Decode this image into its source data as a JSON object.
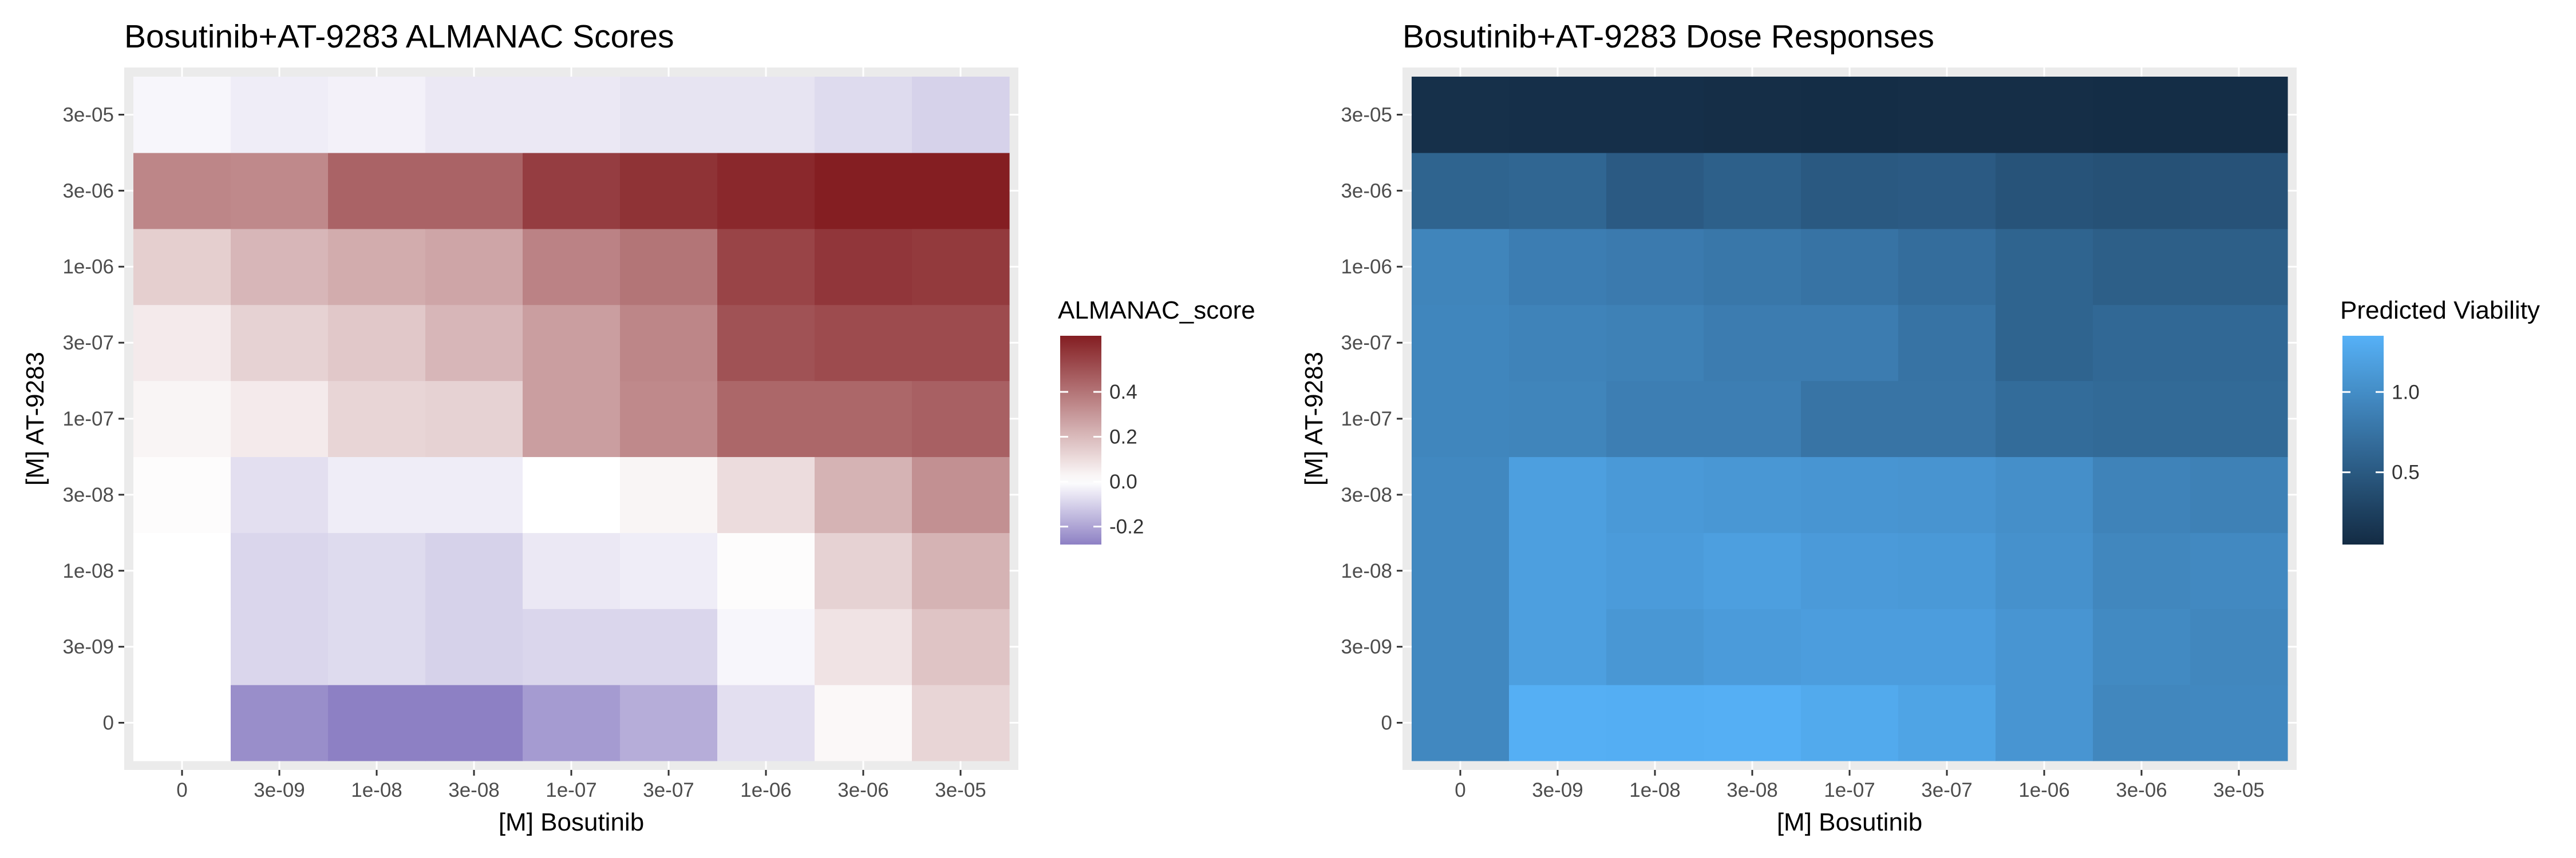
{
  "chart_data": [
    {
      "type": "heatmap",
      "title": "Bosutinib+AT-9283 ALMANAC Scores",
      "xlabel": "[M] Bosutinib",
      "ylabel": "[M] AT-9283",
      "x_categories": [
        "0",
        "3e-09",
        "1e-08",
        "3e-08",
        "1e-07",
        "3e-07",
        "1e-06",
        "3e-06",
        "3e-05"
      ],
      "y_categories": [
        "0",
        "3e-09",
        "1e-08",
        "3e-08",
        "1e-07",
        "3e-07",
        "1e-06",
        "3e-06",
        "3e-05"
      ],
      "values": [
        [
          0.0,
          -0.25,
          -0.28,
          -0.28,
          -0.22,
          -0.18,
          -0.07,
          0.02,
          0.12
        ],
        [
          0.0,
          -0.09,
          -0.08,
          -0.1,
          -0.09,
          -0.09,
          -0.02,
          0.08,
          0.17
        ],
        [
          0.0,
          -0.09,
          -0.08,
          -0.1,
          -0.05,
          -0.04,
          0.01,
          0.13,
          0.22
        ],
        [
          0.01,
          -0.07,
          -0.04,
          -0.04,
          0.0,
          0.03,
          0.1,
          0.22,
          0.32
        ],
        [
          0.03,
          0.06,
          0.12,
          0.13,
          0.28,
          0.34,
          0.44,
          0.44,
          0.46
        ],
        [
          0.06,
          0.13,
          0.16,
          0.21,
          0.28,
          0.35,
          0.5,
          0.52,
          0.52
        ],
        [
          0.14,
          0.21,
          0.24,
          0.26,
          0.36,
          0.4,
          0.54,
          0.58,
          0.57
        ],
        [
          0.35,
          0.34,
          0.45,
          0.45,
          0.56,
          0.59,
          0.62,
          0.65,
          0.65
        ],
        [
          -0.02,
          -0.04,
          -0.03,
          -0.05,
          -0.05,
          -0.06,
          -0.06,
          -0.08,
          -0.1
        ]
      ],
      "legend": {
        "title": "ALMANAC_score",
        "ticks": [
          -0.2,
          0.0,
          0.2,
          0.4
        ],
        "tick_labels": [
          "-0.2",
          "0.0",
          "0.2",
          "0.4"
        ],
        "range": [
          -0.28,
          0.65
        ],
        "colors": {
          "low": "#8d80c4",
          "mid": "#ffffff",
          "high": "#841e22"
        },
        "placement": "right"
      }
    },
    {
      "type": "heatmap",
      "title": "Bosutinib+AT-9283 Dose Responses",
      "xlabel": "[M] Bosutinib",
      "ylabel": "[M] AT-9283",
      "x_categories": [
        "0",
        "3e-09",
        "1e-08",
        "3e-08",
        "1e-07",
        "3e-07",
        "1e-06",
        "3e-06",
        "3e-05"
      ],
      "y_categories": [
        "0",
        "3e-09",
        "1e-08",
        "3e-08",
        "1e-07",
        "3e-07",
        "1e-06",
        "3e-06",
        "3e-05"
      ],
      "values": [
        [
          0.95,
          1.33,
          1.32,
          1.33,
          1.28,
          1.22,
          1.08,
          0.94,
          0.95
        ],
        [
          0.95,
          1.18,
          1.1,
          1.14,
          1.16,
          1.16,
          1.08,
          0.97,
          0.94
        ],
        [
          0.95,
          1.18,
          1.14,
          1.18,
          1.13,
          1.12,
          1.04,
          0.94,
          0.96
        ],
        [
          0.95,
          1.18,
          1.12,
          1.1,
          1.08,
          1.07,
          1.02,
          0.9,
          0.88
        ],
        [
          0.93,
          0.92,
          0.86,
          0.86,
          0.76,
          0.76,
          0.68,
          0.66,
          0.66
        ],
        [
          0.93,
          0.9,
          0.88,
          0.84,
          0.84,
          0.75,
          0.6,
          0.64,
          0.64
        ],
        [
          0.92,
          0.85,
          0.82,
          0.79,
          0.75,
          0.69,
          0.6,
          0.55,
          0.55
        ],
        [
          0.6,
          0.62,
          0.51,
          0.56,
          0.5,
          0.51,
          0.44,
          0.42,
          0.43
        ],
        [
          0.1,
          0.09,
          0.09,
          0.08,
          0.07,
          0.08,
          0.08,
          0.07,
          0.07
        ]
      ],
      "legend": {
        "title": "Predicted Viability",
        "ticks": [
          0.5,
          1.0
        ],
        "tick_labels": [
          "0.5",
          "1.0"
        ],
        "range": [
          0.05,
          1.35
        ],
        "colors": {
          "low": "#132b43",
          "high": "#56b1f7"
        },
        "placement": "right"
      }
    }
  ]
}
